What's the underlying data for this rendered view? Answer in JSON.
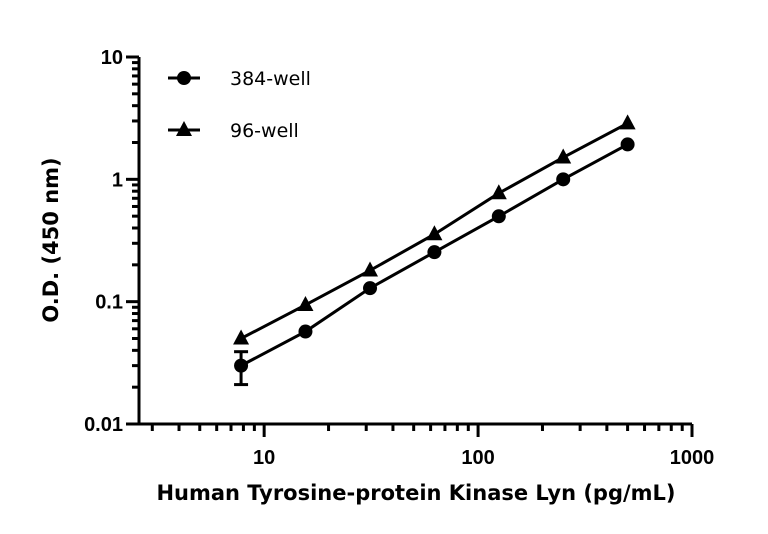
{
  "chart_data": {
    "type": "line",
    "xlabel": "Human Tyrosine-protein Kinase Lyn (pg/mL)",
    "ylabel": "O.D. (450 nm)",
    "xscale": "log",
    "yscale": "log",
    "xlim": [
      2.6,
      1000
    ],
    "ylim": [
      0.01,
      10
    ],
    "xticks": [
      10,
      100,
      1000
    ],
    "xtick_labels": [
      "10",
      "100",
      "1000"
    ],
    "yticks": [
      0.01,
      0.1,
      1,
      10
    ],
    "ytick_labels": [
      "0.01",
      "0.1",
      "1",
      "10"
    ],
    "grid": false,
    "legend_position": "top-left",
    "x": [
      7.8,
      15.6,
      31.25,
      62.5,
      125,
      250,
      500
    ],
    "series": [
      {
        "name": "384-well",
        "marker": "circle",
        "color": "#000000",
        "values": [
          0.03,
          0.057,
          0.129,
          0.254,
          0.499,
          1.0,
          1.93
        ],
        "error": [
          0.009,
          0,
          0,
          0,
          0,
          0,
          0
        ]
      },
      {
        "name": "96-well",
        "marker": "triangle",
        "color": "#000000",
        "values": [
          0.05,
          0.094,
          0.18,
          0.356,
          0.77,
          1.51,
          2.87
        ],
        "error": [
          0,
          0,
          0,
          0,
          0,
          0,
          0
        ]
      }
    ]
  }
}
